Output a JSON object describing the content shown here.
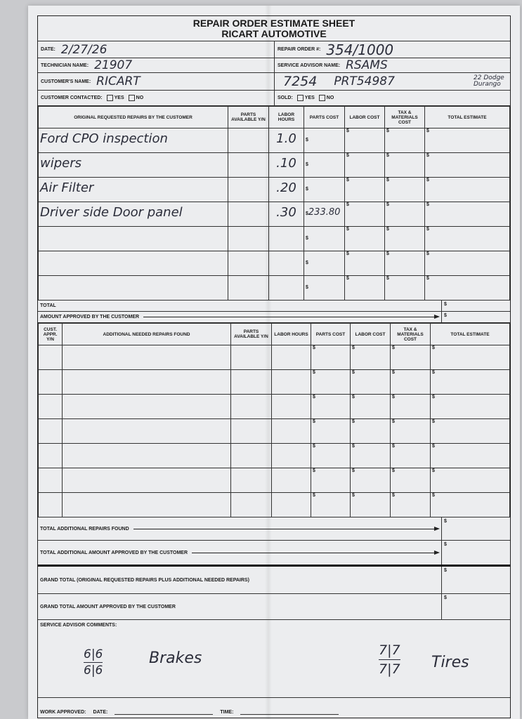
{
  "form": {
    "title": "REPAIR ORDER ESTIMATE SHEET",
    "company": "RICART AUTOMOTIVE",
    "date_label": "DATE:",
    "date_value": "2/27/26",
    "repair_order_label": "REPAIR ORDER #:",
    "repair_order_value": "354/1000",
    "technician_label": "TECHNICIAN NAME:",
    "technician_value": "21907",
    "advisor_label": "SERVICE ADVISOR NAME:",
    "advisor_value": "RSAMS",
    "customer_label": "CUSTOMER'S NAME:",
    "customer_value": "RICART",
    "customer_extra_1": "7254",
    "customer_extra_2": "PRT54987",
    "vehicle_note": "22 Dodge Durango",
    "contacted_label": "CUSTOMER CONTACTED:",
    "sold_label": "SOLD:",
    "yes_label": "YES",
    "no_label": "NO"
  },
  "table1": {
    "headers": [
      "ORIGINAL REQUESTED REPAIRS BY THE CUSTOMER",
      "PARTS AVAILABLE Y/N",
      "LABOR HOURS",
      "PARTS COST",
      "LABOR COST",
      "TAX & MATERIALS COST",
      "TOTAL ESTIMATE"
    ],
    "rows": [
      {
        "desc": "Ford CPO inspection",
        "hours": "1.0",
        "parts_cost": ""
      },
      {
        "desc": "wipers",
        "hours": ".10",
        "parts_cost": ""
      },
      {
        "desc": "Air Filter",
        "hours": ".20",
        "parts_cost": ""
      },
      {
        "desc": "Driver side Door panel",
        "hours": ".30",
        "parts_cost": "233.80"
      },
      {
        "desc": "",
        "hours": "",
        "parts_cost": ""
      },
      {
        "desc": "",
        "hours": "",
        "parts_cost": ""
      },
      {
        "desc": "",
        "hours": "",
        "parts_cost": ""
      }
    ],
    "currency": "$",
    "total_label": "TOTAL",
    "approved_label": "AMOUNT APPROVED BY THE CUSTOMER"
  },
  "table2": {
    "headers": [
      "CUST. APPR. Y/N",
      "ADDITIONAL NEEDED REPAIRS FOUND",
      "PARTS AVAILABLE Y/N",
      "LABOR HOURS",
      "PARTS COST",
      "LABOR COST",
      "TAX & MATERIALS COST",
      "TOTAL ESTIMATE"
    ],
    "row_count": 7
  },
  "summary": {
    "additional_found": "TOTAL ADDITIONAL REPAIRS FOUND",
    "additional_approved": "TOTAL ADDITIONAL AMOUNT APPROVED BY THE CUSTOMER",
    "grand_total": "GRAND TOTAL (Original requested repairs plus additional needed repairs)",
    "grand_approved": "GRAND TOTAL AMOUNT APPROVED BY THE CUSTOMER"
  },
  "comments": {
    "label": "SERVICE ADVISOR COMMENTS:",
    "brakes_front": "6|6",
    "brakes_rear": "6|6",
    "brakes_text": "Brakes",
    "tires_front": "7|7",
    "tires_rear": "7|7",
    "tires_text": "Tires"
  },
  "footer": {
    "work_approved_label": "WORK APPROVED:",
    "date_label": "DATE:",
    "time_label": "TIME:"
  }
}
